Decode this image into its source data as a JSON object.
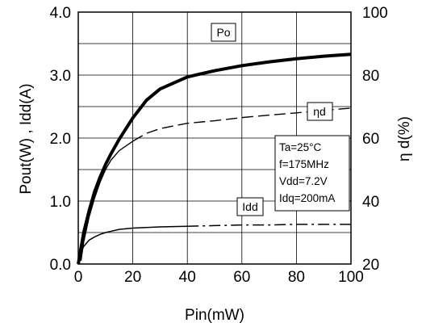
{
  "chart_data": {
    "type": "line",
    "title": "",
    "xlabel": "Pin(mW)",
    "ylabel_left": "Pout(W) , Idd(A)",
    "ylabel_right": "η d(%)",
    "xlim": [
      0,
      100
    ],
    "ylim_left": [
      0,
      4.0
    ],
    "ylim_right": [
      20,
      100
    ],
    "grid": true,
    "x_ticks": [
      "0",
      "20",
      "40",
      "60",
      "80",
      "100"
    ],
    "y_left_ticks": [
      "0.0",
      "1.0",
      "2.0",
      "3.0",
      "4.0"
    ],
    "y_right_ticks": [
      "20",
      "40",
      "60",
      "80",
      "100"
    ],
    "series": [
      {
        "name": "Po",
        "axis": "left",
        "style": "solid-thick",
        "x": [
          0,
          1,
          2,
          4,
          6,
          8,
          10,
          12,
          15,
          20,
          25,
          30,
          40,
          50,
          60,
          70,
          80,
          90,
          100
        ],
        "y": [
          0.0,
          0.25,
          0.5,
          0.85,
          1.15,
          1.38,
          1.58,
          1.75,
          1.98,
          2.32,
          2.6,
          2.78,
          2.97,
          3.07,
          3.15,
          3.21,
          3.26,
          3.3,
          3.33
        ]
      },
      {
        "name": "ηd",
        "axis": "right",
        "style": "solid-thin-then-dashed",
        "x": [
          1,
          2,
          4,
          6,
          8,
          10,
          12,
          15,
          20,
          25,
          30,
          40,
          50,
          60,
          70,
          80,
          90,
          100
        ],
        "y": [
          21,
          27,
          35,
          41,
          46,
          50,
          53,
          56,
          59,
          61.5,
          63,
          64.7,
          65.5,
          66.5,
          67.3,
          68,
          68.8,
          69.5
        ]
      },
      {
        "name": "Idd",
        "axis": "left",
        "style": "solid-thin-then-dashdot",
        "x": [
          0,
          1,
          2,
          4,
          6,
          8,
          10,
          12,
          15,
          20,
          25,
          30,
          40,
          50,
          60,
          70,
          80,
          90,
          100
        ],
        "y": [
          0.05,
          0.18,
          0.28,
          0.38,
          0.43,
          0.47,
          0.5,
          0.52,
          0.55,
          0.57,
          0.58,
          0.59,
          0.6,
          0.61,
          0.62,
          0.62,
          0.63,
          0.63,
          0.63
        ]
      }
    ],
    "curve_labels": {
      "po": "Po",
      "eta": "ηd",
      "idd": "Idd"
    },
    "conditions": [
      "Ta=25°C",
      "f=175MHz",
      "Vdd=7.2V",
      "Idq=200mA"
    ]
  }
}
